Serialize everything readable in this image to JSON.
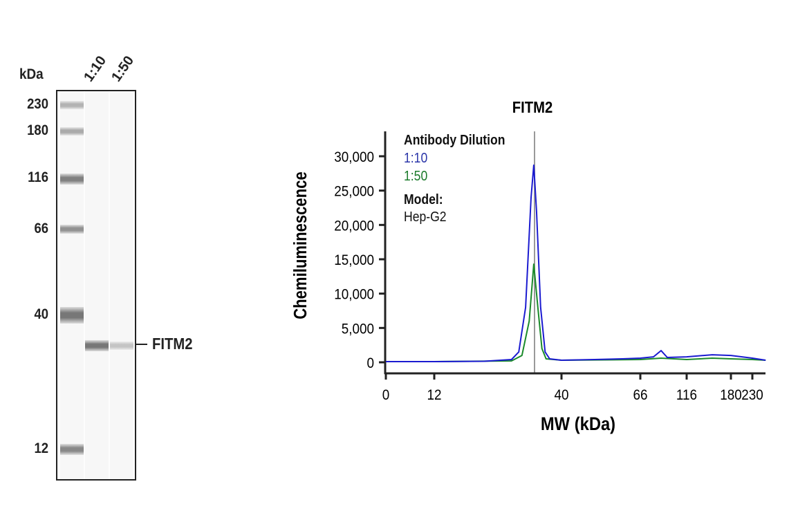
{
  "blot": {
    "unit_label": "kDa",
    "lanes": [
      "1:10",
      "1:50"
    ],
    "markers": [
      {
        "label": "230",
        "intensity": 0.45
      },
      {
        "label": "180",
        "intensity": 0.5
      },
      {
        "label": "116",
        "intensity": 0.75
      },
      {
        "label": "66",
        "intensity": 0.65
      },
      {
        "label": "40",
        "intensity": 0.8
      },
      {
        "label": "12",
        "intensity": 0.7
      }
    ],
    "target_label": "FITM2",
    "target_band_intensity": [
      0.8,
      0.35
    ]
  },
  "chart_data": {
    "type": "line",
    "title": "FITM2",
    "xlabel": "MW (kDa)",
    "ylabel": "Chemiluminescence",
    "x_ticks": [
      "0",
      "12",
      "40",
      "66",
      "116",
      "180",
      "230"
    ],
    "x_scale": "non-linear (MW)",
    "y_ticks": [
      "0",
      "5,000",
      "10,000",
      "15,000",
      "20,000",
      "25,000",
      "30,000"
    ],
    "ylim": [
      0,
      35000
    ],
    "reference_line_kDa": 34,
    "legend": {
      "title": "Antibody Dilution",
      "model_label": "Model:",
      "model_value": "Hep-G2",
      "placement": "top-left"
    },
    "series": [
      {
        "name": "1:10",
        "color": "#1a1ad0",
        "points": [
          [
            0,
            100
          ],
          [
            12,
            100
          ],
          [
            23,
            150
          ],
          [
            29,
            400
          ],
          [
            30.6,
            1500
          ],
          [
            32.1,
            8000
          ],
          [
            33.3,
            24000
          ],
          [
            33.9,
            28700
          ],
          [
            34.5,
            22000
          ],
          [
            35.4,
            8000
          ],
          [
            36.4,
            1500
          ],
          [
            37.4,
            500
          ],
          [
            40,
            300
          ],
          [
            50.9,
            400
          ],
          [
            60.1,
            500
          ],
          [
            66,
            600
          ],
          [
            80.2,
            800
          ],
          [
            88.4,
            1700
          ],
          [
            95.1,
            700
          ],
          [
            116,
            800
          ],
          [
            153,
            1100
          ],
          [
            180,
            1000
          ],
          [
            230,
            600
          ],
          [
            261,
            300
          ]
        ]
      },
      {
        "name": "1:50",
        "color": "#1a8a2a",
        "points": [
          [
            0,
            100
          ],
          [
            12,
            100
          ],
          [
            29,
            200
          ],
          [
            31.3,
            1000
          ],
          [
            32.9,
            6000
          ],
          [
            33.9,
            14300
          ],
          [
            34.8,
            8000
          ],
          [
            35.7,
            2000
          ],
          [
            36.6,
            500
          ],
          [
            40,
            300
          ],
          [
            66,
            400
          ],
          [
            88.4,
            600
          ],
          [
            116,
            400
          ],
          [
            153,
            600
          ],
          [
            180,
            500
          ],
          [
            230,
            400
          ],
          [
            261,
            300
          ]
        ]
      }
    ]
  }
}
